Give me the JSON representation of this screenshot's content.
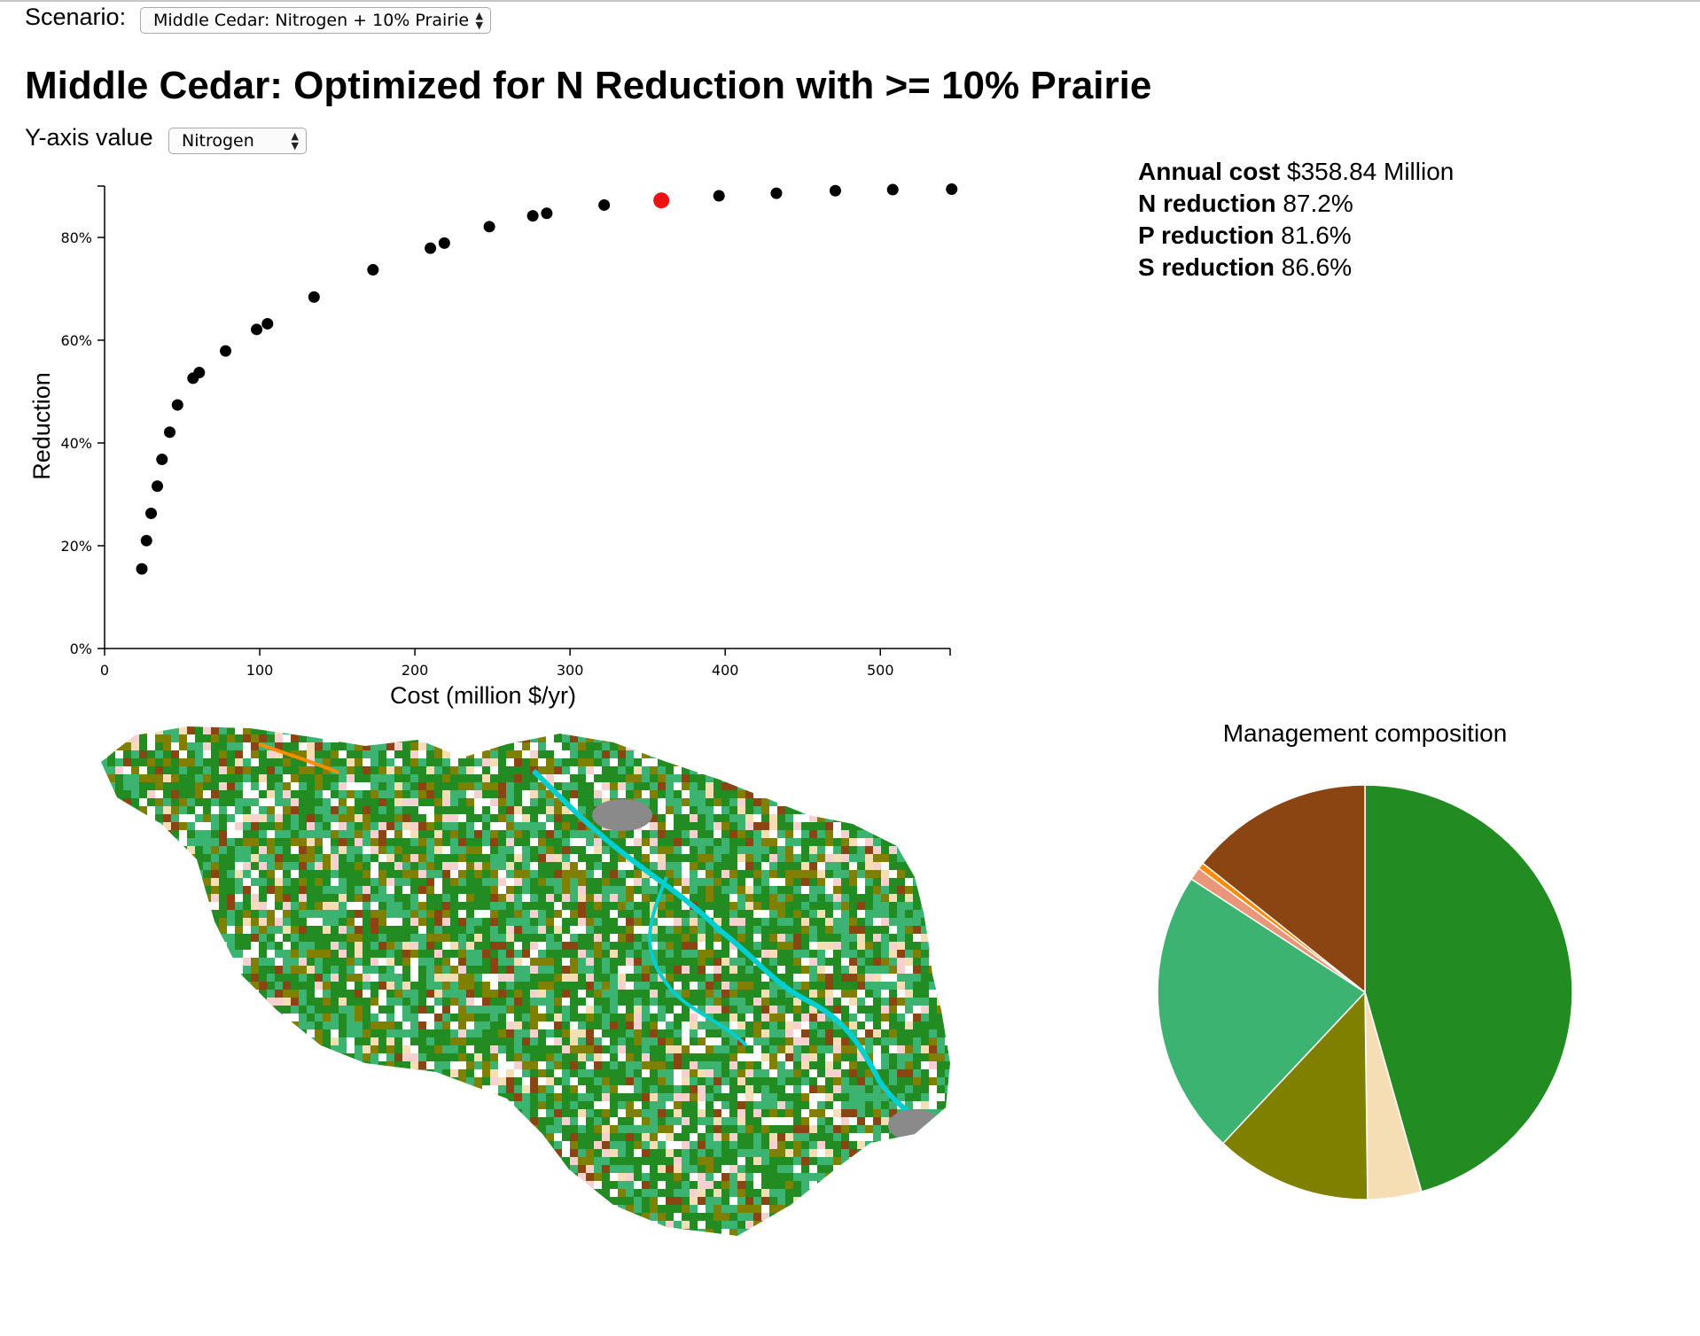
{
  "header": {
    "scenario_label": "Scenario:",
    "scenario_value": "Middle Cedar: Nitrogen + 10% Prairie",
    "title": "Middle Cedar: Optimized for N Reduction with >= 10% Prairie",
    "yaxis_label": "Y-axis value",
    "yaxis_value": "Nitrogen"
  },
  "stats": {
    "cost_label": "Annual cost",
    "cost_value": "$358.84 Million",
    "n_label": "N reduction",
    "n_value": "87.2%",
    "p_label": "P reduction",
    "p_value": "81.6%",
    "s_label": "S reduction",
    "s_value": "86.6%"
  },
  "chart_data": {
    "type": "scatter",
    "xlabel": "Cost (million $/yr)",
    "ylabel": "Reduction",
    "xlim": [
      0,
      545
    ],
    "ylim": [
      0,
      90
    ],
    "x_ticks": [
      0,
      100,
      200,
      300,
      400,
      500
    ],
    "y_ticks": [
      0,
      20,
      40,
      60,
      80
    ],
    "y_tick_labels": [
      "0%",
      "20%",
      "40%",
      "60%",
      "80%"
    ],
    "points": [
      {
        "x": 24,
        "y": 15.5
      },
      {
        "x": 27,
        "y": 21
      },
      {
        "x": 30,
        "y": 26.3
      },
      {
        "x": 34,
        "y": 31.6
      },
      {
        "x": 37,
        "y": 36.8
      },
      {
        "x": 42,
        "y": 42.1
      },
      {
        "x": 47,
        "y": 47.4
      },
      {
        "x": 57,
        "y": 52.6
      },
      {
        "x": 61,
        "y": 53.7
      },
      {
        "x": 78,
        "y": 57.9
      },
      {
        "x": 98,
        "y": 62.1
      },
      {
        "x": 105,
        "y": 63.2
      },
      {
        "x": 135,
        "y": 68.4
      },
      {
        "x": 173,
        "y": 73.7
      },
      {
        "x": 210,
        "y": 77.9
      },
      {
        "x": 219,
        "y": 78.9
      },
      {
        "x": 248,
        "y": 82.1
      },
      {
        "x": 276,
        "y": 84.2
      },
      {
        "x": 285,
        "y": 84.7
      },
      {
        "x": 322,
        "y": 86.3
      },
      {
        "x": 358.84,
        "y": 87.2
      },
      {
        "x": 396,
        "y": 88.1
      },
      {
        "x": 433,
        "y": 88.6
      },
      {
        "x": 471,
        "y": 89.1
      },
      {
        "x": 508,
        "y": 89.3
      },
      {
        "x": 546,
        "y": 89.4
      }
    ],
    "selected_index": 20,
    "point_color": "#000000",
    "selected_color": "#ee1111"
  },
  "pie": {
    "title": "Management composition",
    "slices": [
      {
        "value": 45.6,
        "color": "#228b22"
      },
      {
        "value": 4.2,
        "color": "#f5deb3"
      },
      {
        "value": 12.2,
        "color": "#808000"
      },
      {
        "value": 22.2,
        "color": "#3cb371"
      },
      {
        "value": 1.0,
        "color": "#e9967a"
      },
      {
        "value": 0.5,
        "color": "#ff8c00"
      },
      {
        "value": 14.3,
        "color": "#8b4513"
      }
    ]
  },
  "map": {
    "palette": [
      "#228b22",
      "#3cb371",
      "#808000",
      "#8b4513",
      "#f5deb3",
      "#f7d0d0",
      "#00ced1",
      "#8a8a8a",
      "#ff8c00"
    ]
  }
}
